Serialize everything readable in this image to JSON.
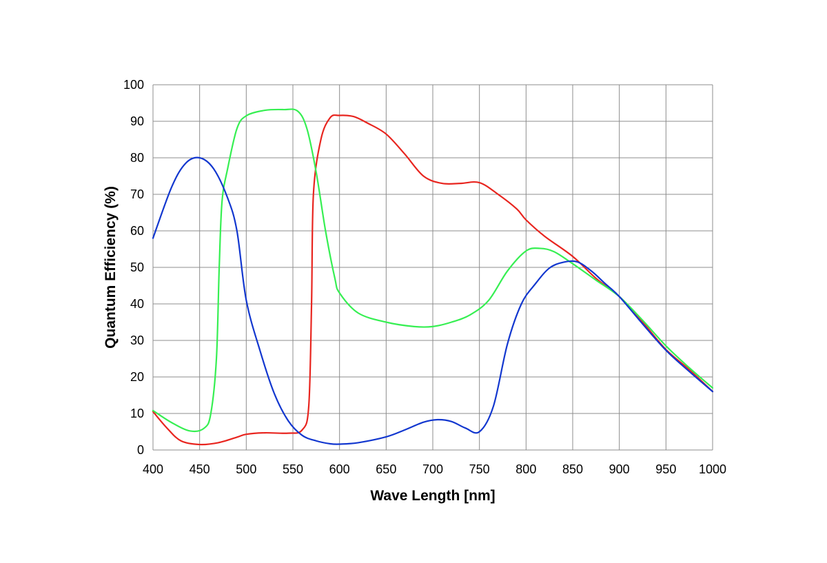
{
  "chart_data": {
    "type": "line",
    "xlabel": "Wave Length [nm]",
    "ylabel": "Quantum Efficiency (%)",
    "xlim": [
      400,
      1000
    ],
    "ylim": [
      0,
      100
    ],
    "xticks": [
      400,
      450,
      500,
      550,
      600,
      650,
      700,
      750,
      800,
      850,
      900,
      950,
      1000
    ],
    "yticks": [
      0,
      10,
      20,
      30,
      40,
      50,
      60,
      70,
      80,
      90,
      100
    ],
    "xtick_labels": [
      "400",
      "450",
      "500",
      "550",
      "600",
      "650",
      "700",
      "750",
      "800",
      "850",
      "900",
      "950",
      "1000"
    ],
    "ytick_labels": [
      "0",
      "10",
      "20",
      "30",
      "40",
      "50",
      "60",
      "70",
      "80",
      "90",
      "100"
    ],
    "grid": true,
    "legend": "none",
    "series": [
      {
        "color": "#e8251f",
        "points": [
          [
            400,
            10.5
          ],
          [
            415,
            6
          ],
          [
            430,
            2.5
          ],
          [
            450,
            1.5
          ],
          [
            470,
            2
          ],
          [
            490,
            3.5
          ],
          [
            500,
            4.3
          ],
          [
            520,
            4.7
          ],
          [
            545,
            4.6
          ],
          [
            560,
            5.5
          ],
          [
            567,
            12
          ],
          [
            570,
            40
          ],
          [
            572,
            70
          ],
          [
            580,
            85
          ],
          [
            590,
            91
          ],
          [
            600,
            91.6
          ],
          [
            615,
            91.3
          ],
          [
            630,
            89.5
          ],
          [
            650,
            86.5
          ],
          [
            670,
            81
          ],
          [
            690,
            75
          ],
          [
            710,
            73
          ],
          [
            730,
            73
          ],
          [
            750,
            73.2
          ],
          [
            770,
            70
          ],
          [
            790,
            66
          ],
          [
            800,
            63
          ],
          [
            820,
            58.5
          ],
          [
            850,
            53
          ],
          [
            875,
            47
          ],
          [
            900,
            42
          ],
          [
            925,
            35
          ],
          [
            950,
            27.5
          ],
          [
            975,
            22
          ],
          [
            1000,
            16
          ]
        ]
      },
      {
        "color": "#36ef52",
        "points": [
          [
            400,
            10.8
          ],
          [
            420,
            7.5
          ],
          [
            440,
            5.2
          ],
          [
            455,
            6
          ],
          [
            462,
            10
          ],
          [
            468,
            25
          ],
          [
            471,
            50
          ],
          [
            474,
            68
          ],
          [
            480,
            77
          ],
          [
            490,
            88
          ],
          [
            500,
            91.5
          ],
          [
            520,
            93
          ],
          [
            540,
            93.2
          ],
          [
            555,
            92.8
          ],
          [
            565,
            88
          ],
          [
            575,
            76
          ],
          [
            585,
            60
          ],
          [
            595,
            47
          ],
          [
            600,
            43
          ],
          [
            620,
            37.5
          ],
          [
            650,
            35
          ],
          [
            680,
            33.8
          ],
          [
            700,
            33.8
          ],
          [
            720,
            35
          ],
          [
            740,
            37
          ],
          [
            760,
            41
          ],
          [
            780,
            49
          ],
          [
            800,
            54.5
          ],
          [
            815,
            55.2
          ],
          [
            830,
            54.3
          ],
          [
            850,
            51
          ],
          [
            875,
            46.5
          ],
          [
            900,
            42
          ],
          [
            925,
            35.5
          ],
          [
            950,
            28.5
          ],
          [
            975,
            22.5
          ],
          [
            1000,
            17
          ]
        ]
      },
      {
        "color": "#1237cf",
        "points": [
          [
            400,
            58
          ],
          [
            420,
            72
          ],
          [
            435,
            78.5
          ],
          [
            450,
            80
          ],
          [
            465,
            77
          ],
          [
            480,
            69
          ],
          [
            490,
            60
          ],
          [
            500,
            41
          ],
          [
            515,
            27
          ],
          [
            530,
            15.5
          ],
          [
            545,
            8
          ],
          [
            560,
            4
          ],
          [
            575,
            2.5
          ],
          [
            590,
            1.7
          ],
          [
            600,
            1.6
          ],
          [
            620,
            2
          ],
          [
            650,
            3.6
          ],
          [
            670,
            5.5
          ],
          [
            690,
            7.6
          ],
          [
            705,
            8.3
          ],
          [
            720,
            7.8
          ],
          [
            735,
            6
          ],
          [
            750,
            5
          ],
          [
            765,
            12
          ],
          [
            780,
            29
          ],
          [
            795,
            40
          ],
          [
            810,
            45.5
          ],
          [
            825,
            49.8
          ],
          [
            840,
            51.4
          ],
          [
            855,
            51.5
          ],
          [
            870,
            49
          ],
          [
            885,
            45.5
          ],
          [
            900,
            42
          ],
          [
            925,
            34.5
          ],
          [
            950,
            27.3
          ],
          [
            975,
            21.5
          ],
          [
            1000,
            16
          ]
        ]
      }
    ]
  }
}
